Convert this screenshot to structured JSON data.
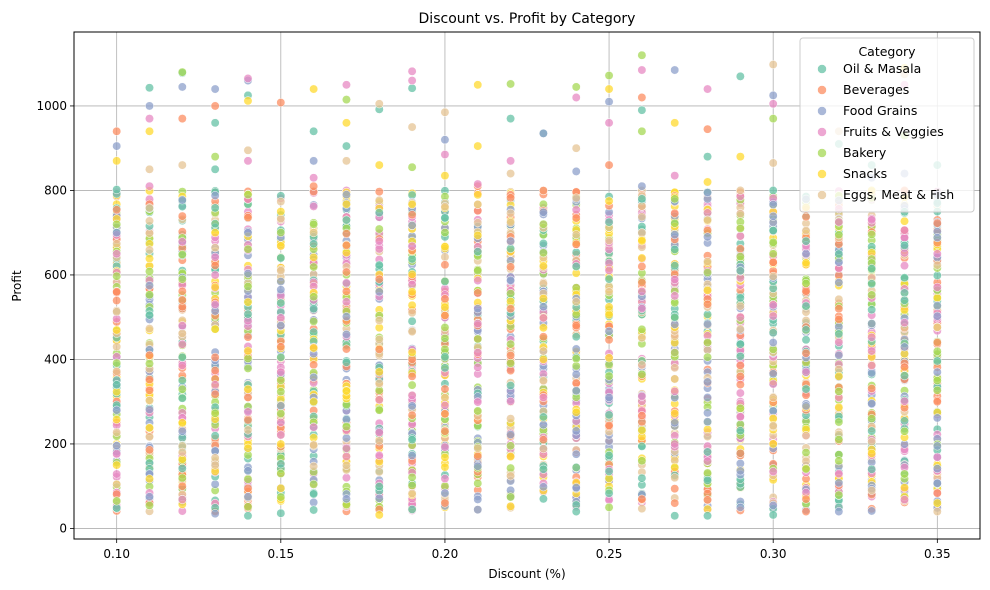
{
  "chart_data": {
    "type": "scatter",
    "title": "Discount vs. Profit by Category",
    "xlabel": "Discount (%)",
    "ylabel": "Profit",
    "xlim": [
      0.087,
      0.363
    ],
    "ylim": [
      -25,
      1175
    ],
    "xticks": [
      0.1,
      0.15,
      0.2,
      0.25,
      0.3,
      0.35
    ],
    "xtick_labels": [
      "0.10",
      "0.15",
      "0.20",
      "0.25",
      "0.30",
      "0.35"
    ],
    "yticks": [
      0,
      200,
      400,
      600,
      800,
      1000
    ],
    "ytick_labels": [
      "0",
      "200",
      "400",
      "600",
      "800",
      "1000"
    ],
    "grid": true,
    "legend": {
      "title": "Category",
      "placement": "top-right"
    },
    "discount_levels": [
      0.1,
      0.11,
      0.12,
      0.13,
      0.14,
      0.15,
      0.16,
      0.17,
      0.18,
      0.19,
      0.2,
      0.21,
      0.22,
      0.23,
      0.24,
      0.25,
      0.26,
      0.27,
      0.28,
      0.29,
      0.3,
      0.31,
      0.32,
      0.33,
      0.34,
      0.35
    ],
    "series": [
      {
        "name": "Oil & Masala",
        "color": "#66c2a5",
        "points": [
          [
            0.1,
            802
          ],
          [
            0.1,
            340
          ],
          [
            0.11,
            1043
          ],
          [
            0.11,
            505
          ],
          [
            0.12,
            1078
          ],
          [
            0.12,
            405
          ],
          [
            0.13,
            960
          ],
          [
            0.13,
            850
          ],
          [
            0.14,
            1025
          ],
          [
            0.14,
            30
          ],
          [
            0.15,
            36
          ],
          [
            0.15,
            640
          ],
          [
            0.16,
            940
          ],
          [
            0.16,
            520
          ],
          [
            0.17,
            905
          ],
          [
            0.17,
            730
          ],
          [
            0.18,
            992
          ],
          [
            0.19,
            1042
          ],
          [
            0.19,
            210
          ],
          [
            0.2,
            735
          ],
          [
            0.2,
            380
          ],
          [
            0.21,
            655
          ],
          [
            0.22,
            970
          ],
          [
            0.22,
            510
          ],
          [
            0.23,
            935
          ],
          [
            0.23,
            70
          ],
          [
            0.24,
            40
          ],
          [
            0.24,
            620
          ],
          [
            0.25,
            725
          ],
          [
            0.25,
            135
          ],
          [
            0.26,
            990
          ],
          [
            0.26,
            780
          ],
          [
            0.27,
            30
          ],
          [
            0.27,
            500
          ],
          [
            0.28,
            880
          ],
          [
            0.28,
            30
          ],
          [
            0.29,
            1070
          ],
          [
            0.29,
            610
          ],
          [
            0.3,
            32
          ],
          [
            0.3,
            705
          ],
          [
            0.31,
            680
          ],
          [
            0.31,
            470
          ],
          [
            0.32,
            910
          ],
          [
            0.32,
            50
          ],
          [
            0.33,
            140
          ],
          [
            0.33,
            860
          ],
          [
            0.34,
            670
          ],
          [
            0.34,
            540
          ],
          [
            0.35,
            860
          ],
          [
            0.35,
            750
          ]
        ]
      },
      {
        "name": "Beverages",
        "color": "#fc8d62",
        "points": [
          [
            0.1,
            940
          ],
          [
            0.1,
            560
          ],
          [
            0.11,
            410
          ],
          [
            0.12,
            970
          ],
          [
            0.12,
            100
          ],
          [
            0.13,
            1000
          ],
          [
            0.13,
            405
          ],
          [
            0.14,
            310
          ],
          [
            0.15,
            1008
          ],
          [
            0.15,
            430
          ],
          [
            0.16,
            810
          ],
          [
            0.17,
            670
          ],
          [
            0.18,
            45
          ],
          [
            0.18,
            590
          ],
          [
            0.19,
            360
          ],
          [
            0.2,
            330
          ],
          [
            0.21,
            810
          ],
          [
            0.22,
            520
          ],
          [
            0.23,
            210
          ],
          [
            0.24,
            480
          ],
          [
            0.25,
            860
          ],
          [
            0.26,
            1020
          ],
          [
            0.26,
            620
          ],
          [
            0.27,
            60
          ],
          [
            0.28,
            945
          ],
          [
            0.29,
            360
          ],
          [
            0.3,
            630
          ],
          [
            0.31,
            40
          ],
          [
            0.32,
            495
          ],
          [
            0.33,
            270
          ],
          [
            0.34,
            800
          ],
          [
            0.35,
            440
          ],
          [
            0.35,
            300
          ]
        ]
      },
      {
        "name": "Food Grains",
        "color": "#8da0cb",
        "points": [
          [
            0.1,
            905
          ],
          [
            0.1,
            280
          ],
          [
            0.11,
            1000
          ],
          [
            0.11,
            75
          ],
          [
            0.12,
            1045
          ],
          [
            0.12,
            230
          ],
          [
            0.13,
            1040
          ],
          [
            0.13,
            35
          ],
          [
            0.14,
            1060
          ],
          [
            0.14,
            75
          ],
          [
            0.15,
            480
          ],
          [
            0.16,
            870
          ],
          [
            0.17,
            790
          ],
          [
            0.17,
            70
          ],
          [
            0.18,
            560
          ],
          [
            0.19,
            290
          ],
          [
            0.2,
            920
          ],
          [
            0.21,
            520
          ],
          [
            0.22,
            680
          ],
          [
            0.23,
            935
          ],
          [
            0.24,
            845
          ],
          [
            0.25,
            1010
          ],
          [
            0.25,
            310
          ],
          [
            0.26,
            810
          ],
          [
            0.27,
            1085
          ],
          [
            0.27,
            250
          ],
          [
            0.28,
            690
          ],
          [
            0.29,
            50
          ],
          [
            0.3,
            1025
          ],
          [
            0.3,
            440
          ],
          [
            0.31,
            290
          ],
          [
            0.32,
            630
          ],
          [
            0.32,
            40
          ],
          [
            0.33,
            830
          ],
          [
            0.34,
            840
          ],
          [
            0.35,
            370
          ]
        ]
      },
      {
        "name": "Fruits & Veggies",
        "color": "#e78ac3",
        "points": [
          [
            0.1,
            650
          ],
          [
            0.11,
            970
          ],
          [
            0.11,
            810
          ],
          [
            0.12,
            480
          ],
          [
            0.13,
            530
          ],
          [
            0.14,
            1065
          ],
          [
            0.14,
            870
          ],
          [
            0.15,
            370
          ],
          [
            0.16,
            830
          ],
          [
            0.17,
            1050
          ],
          [
            0.18,
            680
          ],
          [
            0.19,
            1082
          ],
          [
            0.19,
            1060
          ],
          [
            0.2,
            885
          ],
          [
            0.21,
            815
          ],
          [
            0.22,
            870
          ],
          [
            0.23,
            310
          ],
          [
            0.24,
            1020
          ],
          [
            0.25,
            960
          ],
          [
            0.26,
            1085
          ],
          [
            0.27,
            835
          ],
          [
            0.28,
            1040
          ],
          [
            0.29,
            500
          ],
          [
            0.3,
            1005
          ],
          [
            0.31,
            370
          ],
          [
            0.32,
            725
          ],
          [
            0.33,
            420
          ],
          [
            0.34,
            1050
          ],
          [
            0.35,
            650
          ]
        ]
      },
      {
        "name": "Bakery",
        "color": "#a6d854",
        "points": [
          [
            0.1,
            720
          ],
          [
            0.1,
            65
          ],
          [
            0.11,
            390
          ],
          [
            0.12,
            1080
          ],
          [
            0.12,
            590
          ],
          [
            0.13,
            880
          ],
          [
            0.14,
            790
          ],
          [
            0.15,
            130
          ],
          [
            0.16,
            490
          ],
          [
            0.17,
            1015
          ],
          [
            0.18,
            280
          ],
          [
            0.19,
            855
          ],
          [
            0.2,
            450
          ],
          [
            0.21,
            610
          ],
          [
            0.22,
            1052
          ],
          [
            0.23,
            720
          ],
          [
            0.24,
            1045
          ],
          [
            0.25,
            1072
          ],
          [
            0.26,
            1120
          ],
          [
            0.26,
            940
          ],
          [
            0.27,
            780
          ],
          [
            0.28,
            440
          ],
          [
            0.29,
            710
          ],
          [
            0.3,
            970
          ],
          [
            0.31,
            580
          ],
          [
            0.32,
            160
          ],
          [
            0.33,
            260
          ],
          [
            0.34,
            930
          ],
          [
            0.35,
            350
          ]
        ]
      },
      {
        "name": "Snacks",
        "color": "#ffd92f",
        "points": [
          [
            0.1,
            870
          ],
          [
            0.1,
            150
          ],
          [
            0.11,
            940
          ],
          [
            0.12,
            250
          ],
          [
            0.13,
            700
          ],
          [
            0.14,
            1012
          ],
          [
            0.14,
            190
          ],
          [
            0.15,
            750
          ],
          [
            0.16,
            1040
          ],
          [
            0.16,
            300
          ],
          [
            0.17,
            960
          ],
          [
            0.18,
            32
          ],
          [
            0.18,
            860
          ],
          [
            0.19,
            560
          ],
          [
            0.2,
            835
          ],
          [
            0.21,
            1050
          ],
          [
            0.21,
            905
          ],
          [
            0.22,
            170
          ],
          [
            0.23,
            400
          ],
          [
            0.24,
            275
          ],
          [
            0.25,
            1040
          ],
          [
            0.25,
            775
          ],
          [
            0.26,
            640
          ],
          [
            0.27,
            960
          ],
          [
            0.28,
            820
          ],
          [
            0.29,
            880
          ],
          [
            0.3,
            200
          ],
          [
            0.31,
            760
          ],
          [
            0.32,
            360
          ],
          [
            0.33,
            800
          ],
          [
            0.34,
            1090
          ],
          [
            0.35,
            60
          ]
        ]
      },
      {
        "name": "Eggs, Meat & Fish",
        "color": "#e5c494",
        "points": [
          [
            0.1,
            430
          ],
          [
            0.11,
            850
          ],
          [
            0.12,
            860
          ],
          [
            0.13,
            150
          ],
          [
            0.14,
            895
          ],
          [
            0.15,
            610
          ],
          [
            0.16,
            700
          ],
          [
            0.17,
            870
          ],
          [
            0.18,
            1005
          ],
          [
            0.19,
            950
          ],
          [
            0.2,
            985
          ],
          [
            0.21,
            190
          ],
          [
            0.22,
            840
          ],
          [
            0.23,
            350
          ],
          [
            0.24,
            900
          ],
          [
            0.25,
            560
          ],
          [
            0.26,
            700
          ],
          [
            0.27,
            120
          ],
          [
            0.28,
            730
          ],
          [
            0.29,
            800
          ],
          [
            0.3,
            1098
          ],
          [
            0.3,
            865
          ],
          [
            0.31,
            220
          ],
          [
            0.32,
            940
          ],
          [
            0.33,
            90
          ],
          [
            0.34,
            1075
          ],
          [
            0.35,
            40
          ]
        ]
      }
    ]
  }
}
